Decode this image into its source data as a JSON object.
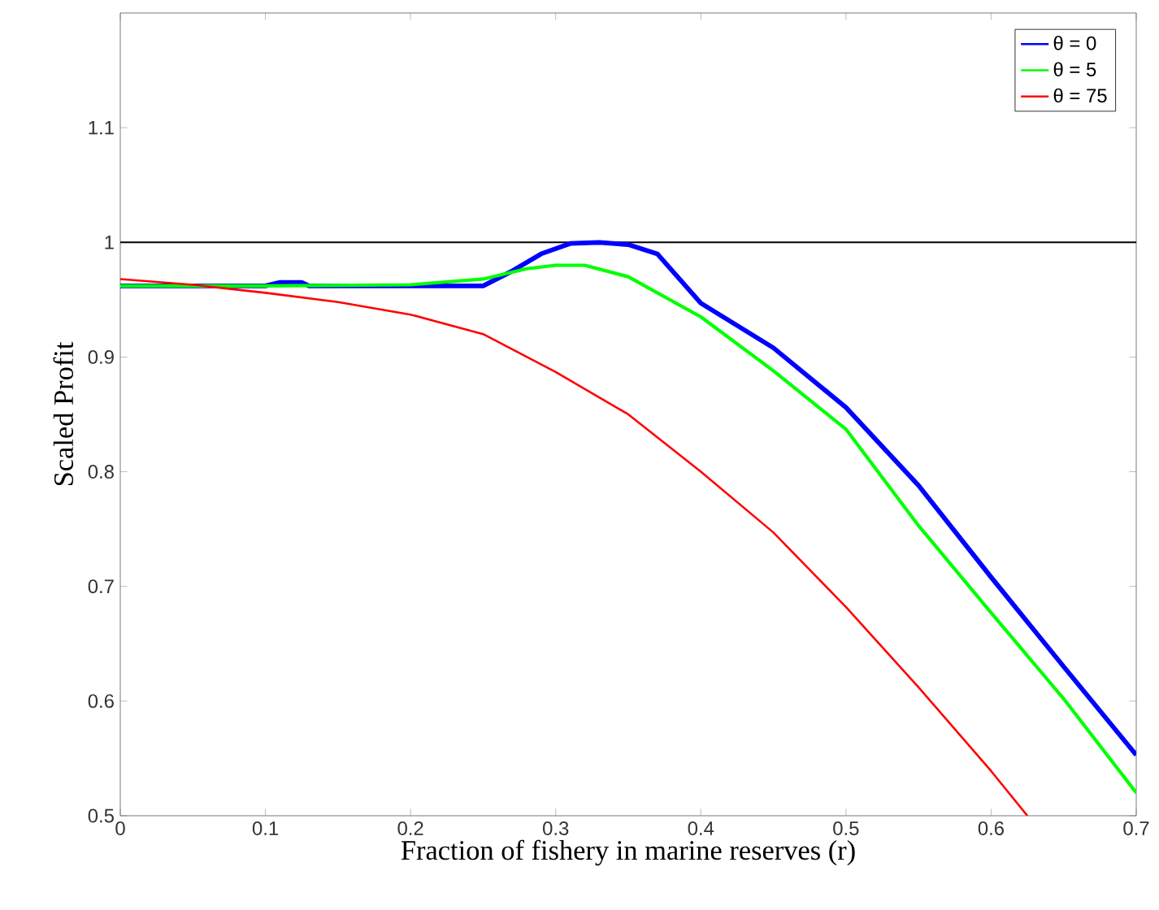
{
  "chart_data": {
    "type": "line",
    "xlabel": "Fraction of fishery in marine reserves (r)",
    "ylabel": "Scaled Profit",
    "xlim": [
      0,
      0.7
    ],
    "ylim": [
      0.5,
      1.2
    ],
    "xticks": [
      0,
      0.1,
      0.2,
      0.3,
      0.4,
      0.5,
      0.6,
      0.7
    ],
    "yticks": [
      0.5,
      0.6,
      0.7,
      0.8,
      0.9,
      1,
      1.1
    ],
    "legend": "top right",
    "grid": false,
    "ref_lines": [
      {
        "axis": "y",
        "value": 1,
        "color": "#000000"
      }
    ],
    "series": [
      {
        "name": "θ = 0",
        "color": "#0000ff",
        "x": [
          0,
          0.1,
          0.11,
          0.125,
          0.13,
          0.2,
          0.25,
          0.27,
          0.29,
          0.31,
          0.33,
          0.35,
          0.37,
          0.4,
          0.45,
          0.5,
          0.55,
          0.6,
          0.65,
          0.7
        ],
        "values": [
          0.962,
          0.962,
          0.965,
          0.965,
          0.962,
          0.962,
          0.962,
          0.975,
          0.99,
          0.999,
          1.0,
          0.998,
          0.99,
          0.947,
          0.908,
          0.856,
          0.788,
          0.708,
          0.63,
          0.553
        ]
      },
      {
        "name": "θ = 5",
        "color": "#00ff00",
        "x": [
          0,
          0.1,
          0.2,
          0.25,
          0.28,
          0.3,
          0.32,
          0.35,
          0.4,
          0.45,
          0.5,
          0.55,
          0.6,
          0.65,
          0.7
        ],
        "values": [
          0.962,
          0.962,
          0.963,
          0.968,
          0.977,
          0.98,
          0.98,
          0.97,
          0.935,
          0.888,
          0.837,
          0.753,
          0.677,
          0.602,
          0.52
        ]
      },
      {
        "name": "θ = 75",
        "color": "#ff0000",
        "x": [
          0,
          0.05,
          0.1,
          0.15,
          0.2,
          0.25,
          0.3,
          0.35,
          0.4,
          0.45,
          0.5,
          0.55,
          0.6,
          0.625
        ],
        "values": [
          0.968,
          0.963,
          0.956,
          0.948,
          0.937,
          0.92,
          0.887,
          0.85,
          0.8,
          0.747,
          0.682,
          0.612,
          0.539,
          0.5
        ]
      }
    ]
  }
}
